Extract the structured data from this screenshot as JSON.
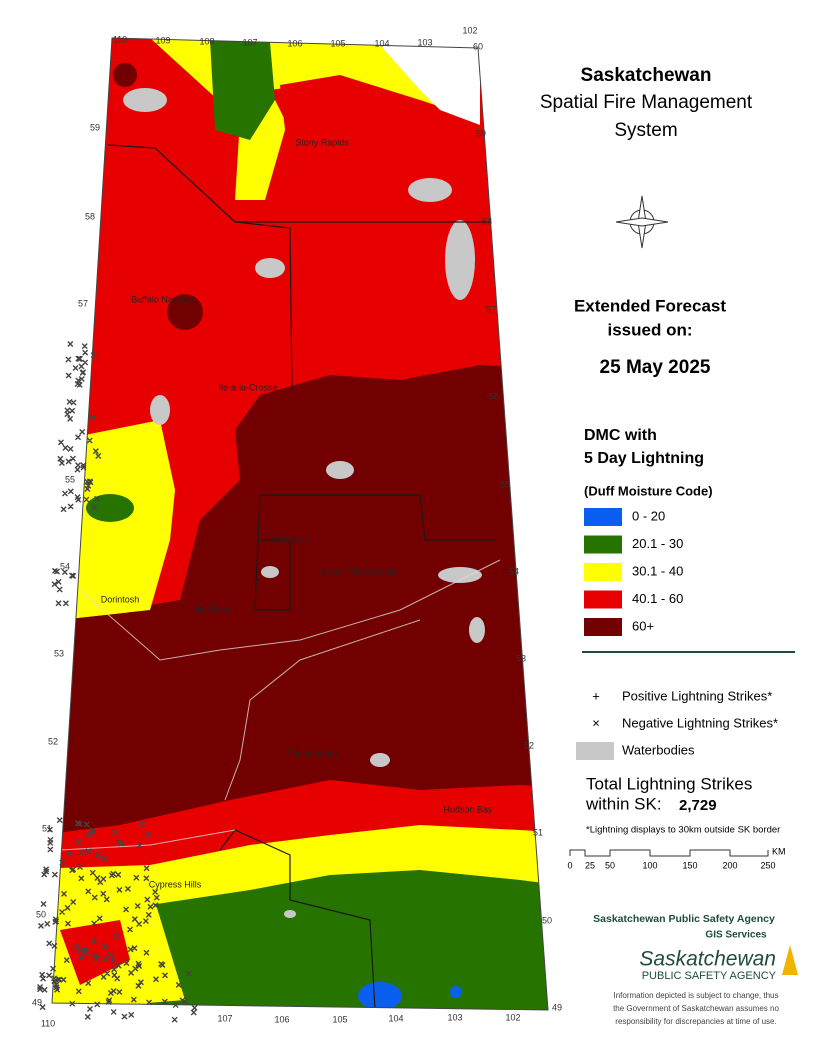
{
  "header": {
    "title": "Saskatchewan",
    "subtitle_lines": [
      "Spatial Fire Management",
      "System"
    ]
  },
  "forecast": {
    "line1": "Extended Forecast",
    "line2": "issued on:",
    "date": "25 May 2025"
  },
  "legend": {
    "title_lines": [
      "DMC with",
      "5 Day Lightning"
    ],
    "subtitle": "(Duff Moisture Code)",
    "items": [
      {
        "label": "0 - 20",
        "color": "#0a5ff0"
      },
      {
        "label": "20.1 - 30",
        "color": "#267300"
      },
      {
        "label": "30.1 - 40",
        "color": "#ffff00"
      },
      {
        "label": "40.1 - 60",
        "color": "#e60000"
      },
      {
        "label": "60+",
        "color": "#730000"
      }
    ]
  },
  "symbols": [
    {
      "glyph": "+",
      "label": "Positive Lightning Strikes*"
    },
    {
      "glyph": "×",
      "label": "Negative Lightning Strikes*"
    },
    {
      "glyph": "",
      "label": "Waterbodies"
    }
  ],
  "totals": {
    "line1": "Total Lightning Strikes",
    "line2": "within SK:",
    "count": "2,729",
    "note": "*Lightning displays to 30km outside SK border"
  },
  "scale": {
    "labels": [
      "0",
      "25",
      "50",
      "100",
      "150",
      "200",
      "250"
    ],
    "unit": "KM"
  },
  "agency": {
    "name": "Saskatchewan Public Safety Agency",
    "dept": "GIS  Services",
    "logo_main": "Saskatchewan",
    "logo_sub": "PUBLIC SAFETY AGENCY",
    "disclaimer": [
      "Information depicted is subject to change, thus",
      "the Government of Saskatchewan assumes no",
      "responsibility for discrepancies at time of use."
    ]
  },
  "map": {
    "places": [
      "Stony Rapids",
      "Buffalo Narrows",
      "Ile-a-la-Crosse",
      "Waskesiu",
      "Lower Fishing Lake",
      "Dorintosh",
      "Big River",
      "Prince Albert",
      "Hudson Bay",
      "Cypress Hills"
    ],
    "lat_left": [
      "59",
      "58",
      "57",
      "55",
      "54",
      "53",
      "52",
      "51",
      "50",
      "49"
    ],
    "lat_right": [
      "60",
      "59",
      "58",
      "57",
      "56",
      "55",
      "54",
      "53",
      "52",
      "51",
      "50",
      "49"
    ],
    "lon_top": [
      "110",
      "109",
      "108",
      "107",
      "106",
      "105",
      "104",
      "103",
      "102"
    ],
    "lon_bottom": [
      "110",
      "107",
      "106",
      "105",
      "104",
      "103",
      "102"
    ]
  }
}
